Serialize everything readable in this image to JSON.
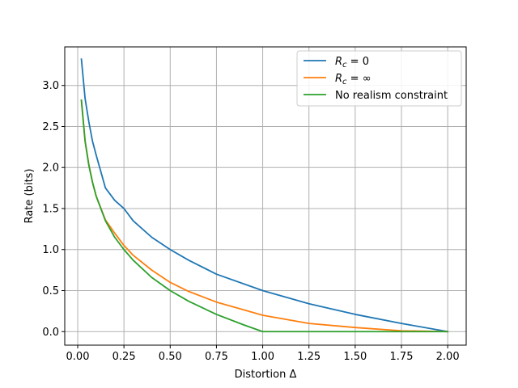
{
  "chart_data": {
    "type": "line",
    "xlabel": "Distortion Δ",
    "ylabel": "Rate (bits)",
    "xlim": [
      -0.07,
      2.1
    ],
    "ylim": [
      -0.165,
      3.47
    ],
    "xticks": [
      0.0,
      0.25,
      0.5,
      0.75,
      1.0,
      1.25,
      1.5,
      1.75,
      2.0
    ],
    "xtick_labels": [
      "0.00",
      "0.25",
      "0.50",
      "0.75",
      "1.00",
      "1.25",
      "1.50",
      "1.75",
      "2.00"
    ],
    "yticks": [
      0.0,
      0.5,
      1.0,
      1.5,
      2.0,
      2.5,
      3.0
    ],
    "ytick_labels": [
      "0.0",
      "0.5",
      "1.0",
      "1.5",
      "2.0",
      "2.5",
      "3.0"
    ],
    "grid": true,
    "legend_position": "upper-right",
    "series": [
      {
        "name_prefix": "R",
        "name_sub": "c",
        "name_suffix": " = 0",
        "color": "#1f77b4",
        "x": [
          0.02,
          0.04,
          0.06,
          0.08,
          0.1,
          0.15,
          0.2,
          0.25,
          0.3,
          0.4,
          0.5,
          0.6,
          0.75,
          1.0,
          1.25,
          1.5,
          1.75,
          2.0
        ],
        "y": [
          3.32,
          2.84,
          2.56,
          2.32,
          2.15,
          1.75,
          1.6,
          1.5,
          1.35,
          1.15,
          1.0,
          0.87,
          0.7,
          0.5,
          0.34,
          0.21,
          0.1,
          0.0
        ]
      },
      {
        "name_prefix": "R",
        "name_sub": "c",
        "name_suffix": " = ∞",
        "color": "#ff7f0e",
        "x": [
          0.02,
          0.04,
          0.06,
          0.08,
          0.1,
          0.15,
          0.2,
          0.25,
          0.3,
          0.4,
          0.5,
          0.6,
          0.75,
          1.0,
          1.25,
          1.5,
          1.75,
          2.0
        ],
        "y": [
          2.82,
          2.32,
          2.04,
          1.82,
          1.65,
          1.36,
          1.2,
          1.05,
          0.93,
          0.75,
          0.6,
          0.49,
          0.36,
          0.2,
          0.1,
          0.05,
          0.01,
          0.0
        ]
      },
      {
        "name_prefix": "No realism constraint",
        "name_sub": "",
        "name_suffix": "",
        "color": "#2ca02c",
        "x": [
          0.02,
          0.04,
          0.06,
          0.08,
          0.1,
          0.15,
          0.2,
          0.25,
          0.3,
          0.4,
          0.5,
          0.6,
          0.75,
          0.9,
          1.0,
          1.25,
          1.5,
          1.75,
          2.0
        ],
        "y": [
          2.82,
          2.32,
          2.03,
          1.82,
          1.65,
          1.35,
          1.15,
          1.0,
          0.87,
          0.66,
          0.5,
          0.37,
          0.21,
          0.08,
          0.0,
          0.0,
          0.0,
          0.0,
          0.0
        ]
      }
    ]
  }
}
